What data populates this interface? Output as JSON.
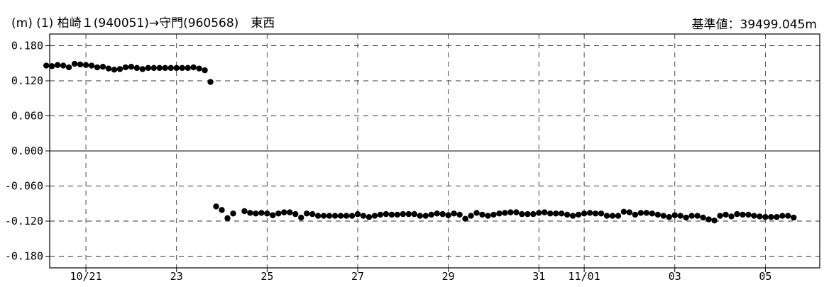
{
  "header": {
    "title_parts": [
      "(m)",
      "(1)",
      "柏崎１(940051)→守門(960568)",
      "東西"
    ],
    "baseline": "基準値：39499.045m"
  },
  "chart_data": {
    "type": "scatter",
    "title": "(1) 柏崎１(940051)→守門(960568)　東西",
    "ylabel": "(m)",
    "ylim": [
      -0.2,
      0.2
    ],
    "xlim": [
      -0.8,
      16.2
    ],
    "grid": true,
    "y_ticks": [
      {
        "v": 0.18,
        "label": "0.180"
      },
      {
        "v": 0.12,
        "label": "0.120"
      },
      {
        "v": 0.06,
        "label": "0.060"
      },
      {
        "v": 0.0,
        "label": "0.000"
      },
      {
        "v": -0.06,
        "label": "-0.060"
      },
      {
        "v": -0.12,
        "label": "-0.120"
      },
      {
        "v": -0.18,
        "label": "-0.180"
      }
    ],
    "x_ticks": [
      {
        "v": 0,
        "label": "10/21"
      },
      {
        "v": 2,
        "label": "23"
      },
      {
        "v": 4,
        "label": "25"
      },
      {
        "v": 6,
        "label": "27"
      },
      {
        "v": 8,
        "label": "29"
      },
      {
        "v": 10,
        "label": "31"
      },
      {
        "v": 11,
        "label": "11/01"
      },
      {
        "v": 13,
        "label": "03"
      },
      {
        "v": 15,
        "label": "05"
      }
    ],
    "series": [
      {
        "color": "#000000",
        "points": [
          [
            -0.875,
            0.146
          ],
          [
            -0.75,
            0.145
          ],
          [
            -0.625,
            0.147
          ],
          [
            -0.5,
            0.146
          ],
          [
            -0.375,
            0.143
          ],
          [
            -0.25,
            0.149
          ],
          [
            -0.125,
            0.148
          ],
          [
            0.0,
            0.147
          ],
          [
            0.125,
            0.146
          ],
          [
            0.25,
            0.143
          ],
          [
            0.375,
            0.144
          ],
          [
            0.5,
            0.141
          ],
          [
            0.625,
            0.139
          ],
          [
            0.75,
            0.14
          ],
          [
            0.875,
            0.143
          ],
          [
            1.0,
            0.144
          ],
          [
            1.125,
            0.142
          ],
          [
            1.25,
            0.14
          ],
          [
            1.375,
            0.142
          ],
          [
            1.5,
            0.142
          ],
          [
            1.625,
            0.142
          ],
          [
            1.75,
            0.142
          ],
          [
            1.875,
            0.142
          ],
          [
            2.0,
            0.142
          ],
          [
            2.125,
            0.142
          ],
          [
            2.25,
            0.142
          ],
          [
            2.375,
            0.143
          ],
          [
            2.5,
            0.141
          ],
          [
            2.625,
            0.138
          ],
          [
            2.75,
            0.118
          ],
          [
            2.875,
            -0.095
          ],
          [
            3.0,
            -0.101
          ],
          [
            3.125,
            -0.115
          ],
          [
            3.25,
            -0.107
          ],
          [
            3.5,
            -0.103
          ],
          [
            3.625,
            -0.106
          ],
          [
            3.75,
            -0.107
          ],
          [
            3.875,
            -0.106
          ],
          [
            4.0,
            -0.107
          ],
          [
            4.125,
            -0.11
          ],
          [
            4.25,
            -0.107
          ],
          [
            4.375,
            -0.105
          ],
          [
            4.5,
            -0.105
          ],
          [
            4.625,
            -0.108
          ],
          [
            4.75,
            -0.114
          ],
          [
            4.875,
            -0.107
          ],
          [
            5.0,
            -0.108
          ],
          [
            5.125,
            -0.111
          ],
          [
            5.25,
            -0.111
          ],
          [
            5.375,
            -0.111
          ],
          [
            5.5,
            -0.111
          ],
          [
            5.625,
            -0.111
          ],
          [
            5.75,
            -0.111
          ],
          [
            5.875,
            -0.111
          ],
          [
            6.0,
            -0.108
          ],
          [
            6.125,
            -0.111
          ],
          [
            6.25,
            -0.113
          ],
          [
            6.375,
            -0.111
          ],
          [
            6.5,
            -0.109
          ],
          [
            6.625,
            -0.108
          ],
          [
            6.75,
            -0.109
          ],
          [
            6.875,
            -0.109
          ],
          [
            7.0,
            -0.108
          ],
          [
            7.125,
            -0.108
          ],
          [
            7.25,
            -0.108
          ],
          [
            7.375,
            -0.111
          ],
          [
            7.5,
            -0.111
          ],
          [
            7.625,
            -0.109
          ],
          [
            7.75,
            -0.107
          ],
          [
            7.875,
            -0.108
          ],
          [
            8.0,
            -0.11
          ],
          [
            8.125,
            -0.107
          ],
          [
            8.25,
            -0.109
          ],
          [
            8.375,
            -0.116
          ],
          [
            8.5,
            -0.111
          ],
          [
            8.625,
            -0.106
          ],
          [
            8.75,
            -0.109
          ],
          [
            8.875,
            -0.111
          ],
          [
            9.0,
            -0.109
          ],
          [
            9.125,
            -0.107
          ],
          [
            9.25,
            -0.106
          ],
          [
            9.375,
            -0.105
          ],
          [
            9.5,
            -0.105
          ],
          [
            9.625,
            -0.108
          ],
          [
            9.75,
            -0.108
          ],
          [
            9.875,
            -0.108
          ],
          [
            10.0,
            -0.106
          ],
          [
            10.125,
            -0.105
          ],
          [
            10.25,
            -0.107
          ],
          [
            10.375,
            -0.107
          ],
          [
            10.5,
            -0.107
          ],
          [
            10.625,
            -0.109
          ],
          [
            10.75,
            -0.111
          ],
          [
            10.875,
            -0.109
          ],
          [
            11.0,
            -0.107
          ],
          [
            11.125,
            -0.106
          ],
          [
            11.25,
            -0.107
          ],
          [
            11.375,
            -0.107
          ],
          [
            11.5,
            -0.111
          ],
          [
            11.625,
            -0.111
          ],
          [
            11.75,
            -0.111
          ],
          [
            11.875,
            -0.104
          ],
          [
            12.0,
            -0.105
          ],
          [
            12.125,
            -0.109
          ],
          [
            12.25,
            -0.106
          ],
          [
            12.375,
            -0.106
          ],
          [
            12.5,
            -0.107
          ],
          [
            12.625,
            -0.109
          ],
          [
            12.75,
            -0.111
          ],
          [
            12.875,
            -0.113
          ],
          [
            13.0,
            -0.11
          ],
          [
            13.125,
            -0.111
          ],
          [
            13.25,
            -0.114
          ],
          [
            13.375,
            -0.111
          ],
          [
            13.5,
            -0.111
          ],
          [
            13.625,
            -0.114
          ],
          [
            13.75,
            -0.117
          ],
          [
            13.875,
            -0.119
          ],
          [
            14.0,
            -0.111
          ],
          [
            14.125,
            -0.109
          ],
          [
            14.25,
            -0.112
          ],
          [
            14.375,
            -0.108
          ],
          [
            14.5,
            -0.109
          ],
          [
            14.625,
            -0.109
          ],
          [
            14.75,
            -0.111
          ],
          [
            14.875,
            -0.112
          ],
          [
            15.0,
            -0.113
          ],
          [
            15.125,
            -0.113
          ],
          [
            15.25,
            -0.113
          ],
          [
            15.375,
            -0.111
          ],
          [
            15.5,
            -0.111
          ],
          [
            15.625,
            -0.114
          ]
        ]
      }
    ]
  }
}
